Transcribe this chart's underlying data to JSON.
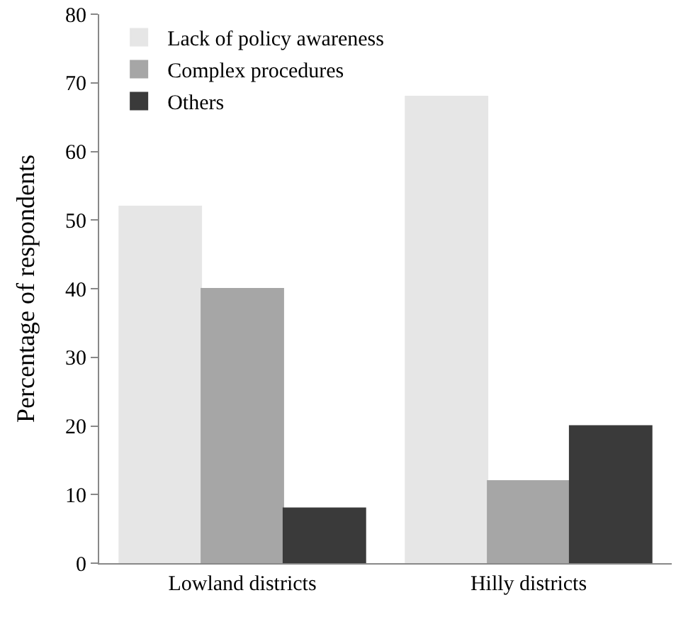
{
  "chart_data": {
    "type": "bar",
    "ylabel": "Percentage of respondents",
    "categories": [
      "Lowland districts",
      "Hilly districts"
    ],
    "series": [
      {
        "name": "Lack of policy awareness",
        "color": "#e6e6e6",
        "values": [
          52,
          68
        ]
      },
      {
        "name": "Complex procedures",
        "color": "#a6a6a6",
        "values": [
          40,
          12
        ]
      },
      {
        "name": "Others",
        "color": "#3a3a3a",
        "values": [
          8,
          20
        ]
      }
    ],
    "ylim": [
      0,
      80
    ],
    "yticks": [
      0,
      10,
      20,
      30,
      40,
      50,
      60,
      70,
      80
    ],
    "grid": false,
    "legend": "top left"
  }
}
